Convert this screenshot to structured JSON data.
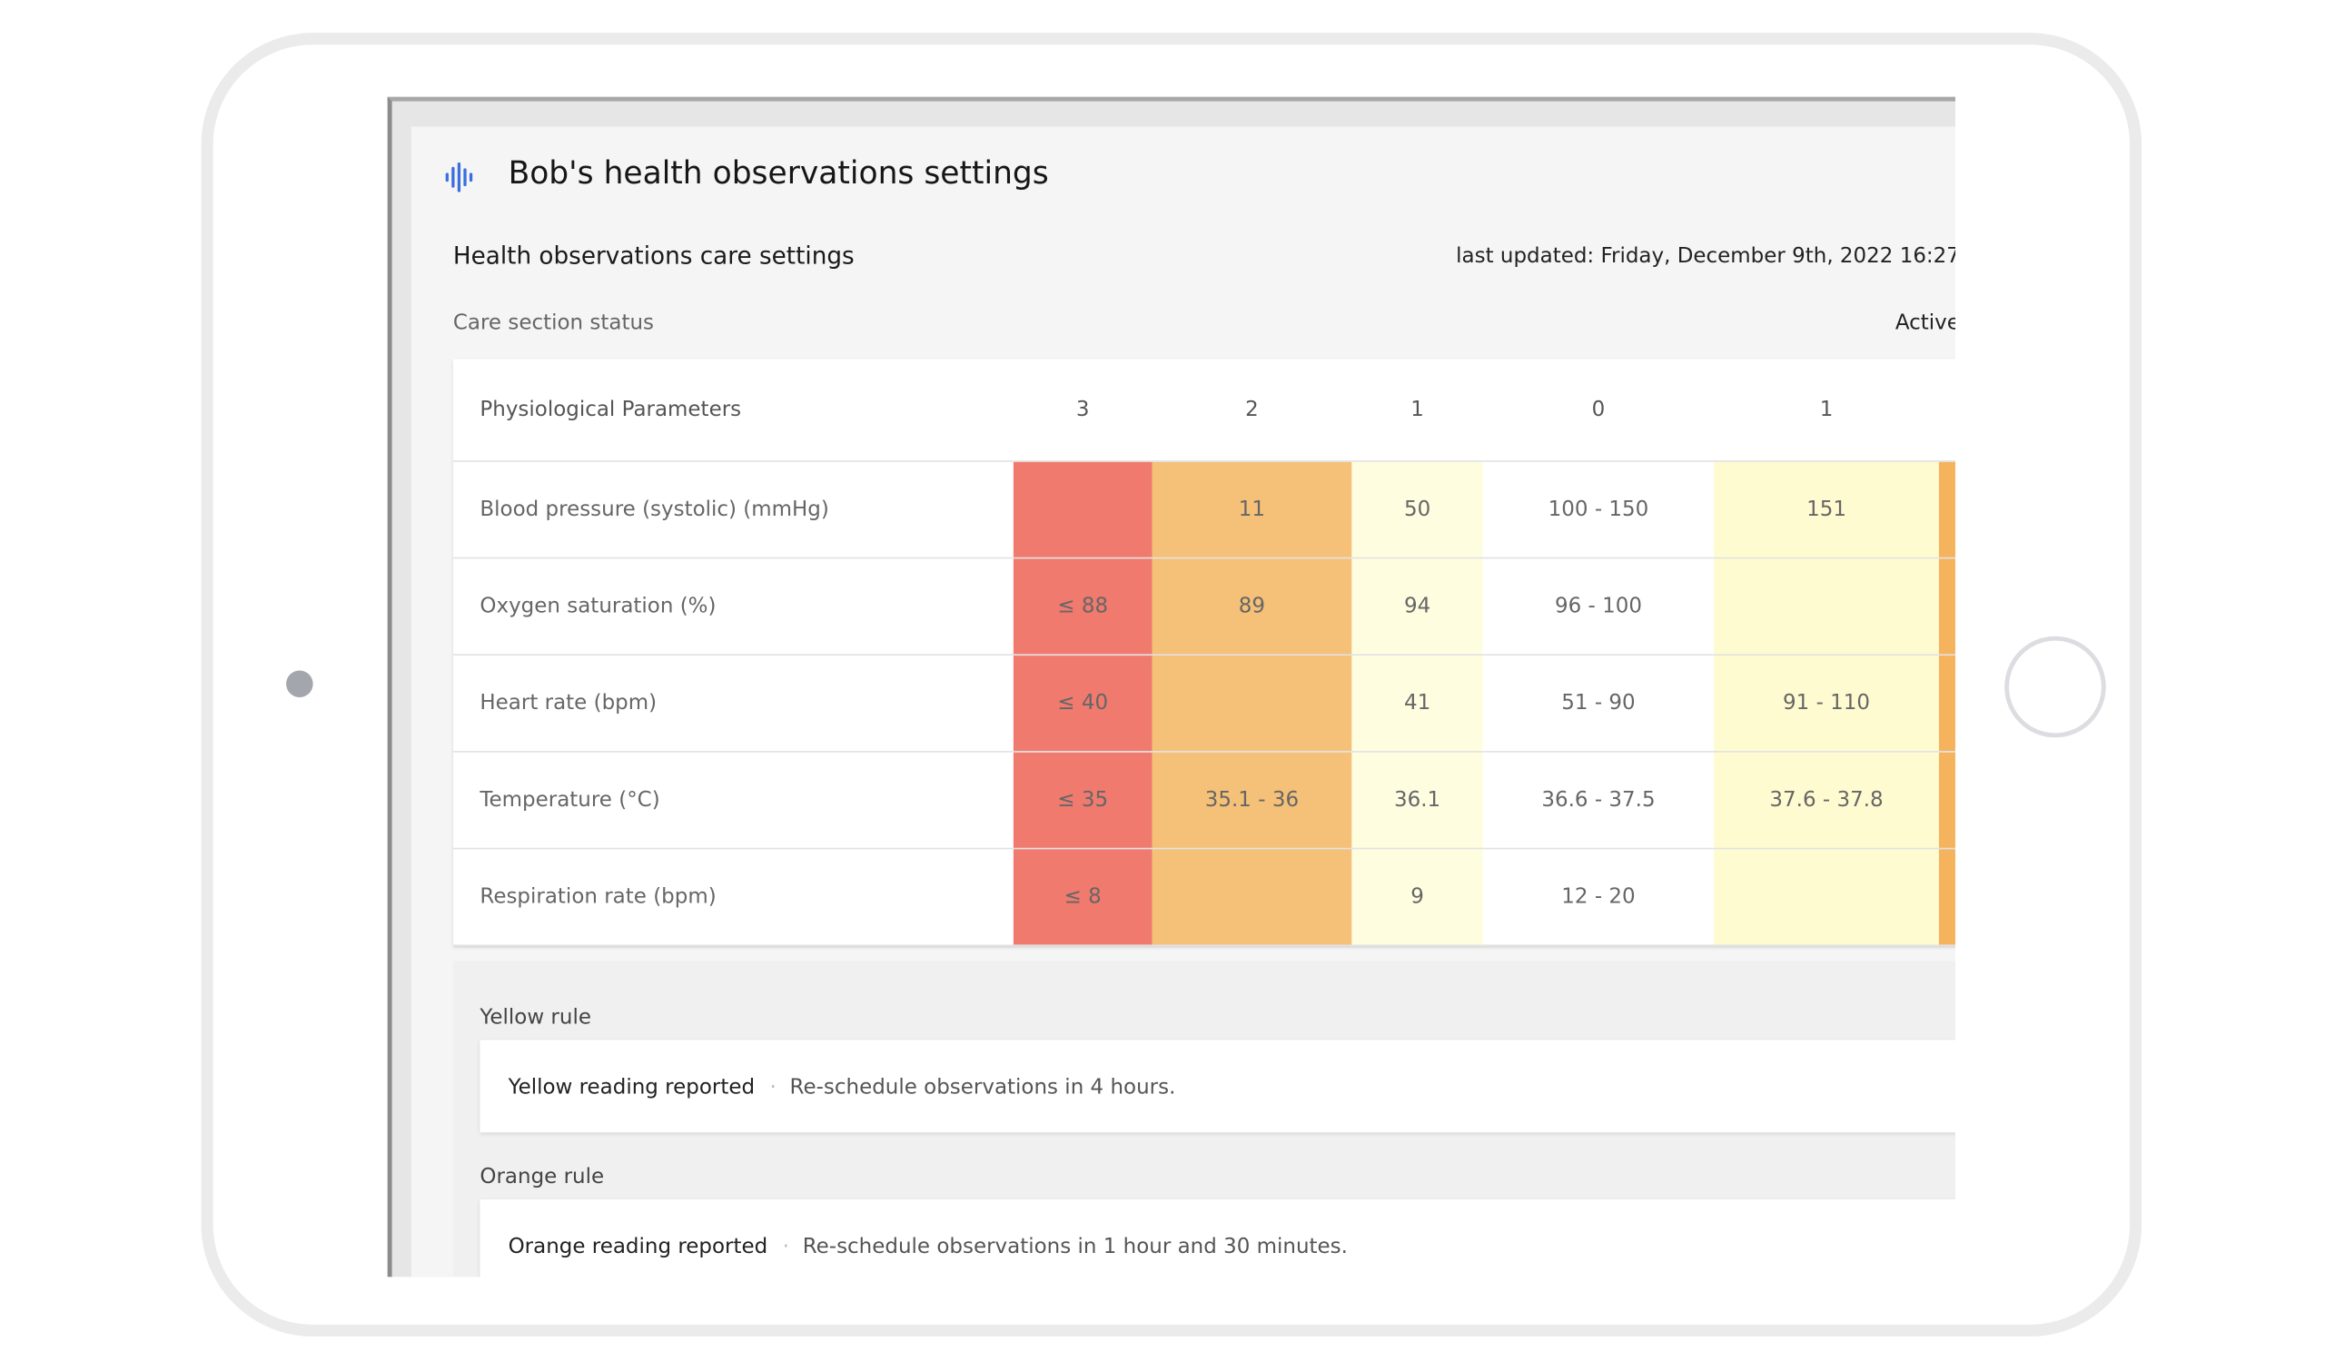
{
  "header": {
    "title": "Bob's health observations settings"
  },
  "section": {
    "title": "Health observations care settings",
    "last_updated": "last updated: Friday, December 9th, 2022 16:27"
  },
  "status": {
    "label": "Care section status",
    "value": "Active"
  },
  "table": {
    "header": [
      "Physiological Parameters",
      "3",
      "2",
      "1",
      "0",
      "1"
    ],
    "rows": [
      [
        "Blood pressure (systolic) (mmHg)",
        null,
        "11",
        "50",
        "100 - 150",
        "151"
      ],
      [
        "Oxygen saturation (%)",
        "≤ 88",
        "89",
        "94",
        "96 - 100",
        null
      ],
      [
        "Heart rate (bpm)",
        "≤ 40",
        null,
        "41",
        "51 - 90",
        "91 - 110"
      ],
      [
        "Temperature (°C)",
        "≤ 35",
        "35.1 - 36",
        "36.1",
        "36.6 - 37.5",
        "37.6 - 37.8"
      ],
      [
        "Respiration rate (bpm)",
        "≤ 8",
        null,
        "9",
        "12 - 20",
        null
      ]
    ]
  },
  "rules": [
    {
      "label": "Yellow rule",
      "title": "Yellow reading reported",
      "text": "Re-schedule observations in 4 hours."
    },
    {
      "label": "Orange rule",
      "title": "Orange reading reported",
      "text": "Re-schedule observations in 1 hour and 30 minutes."
    }
  ]
}
